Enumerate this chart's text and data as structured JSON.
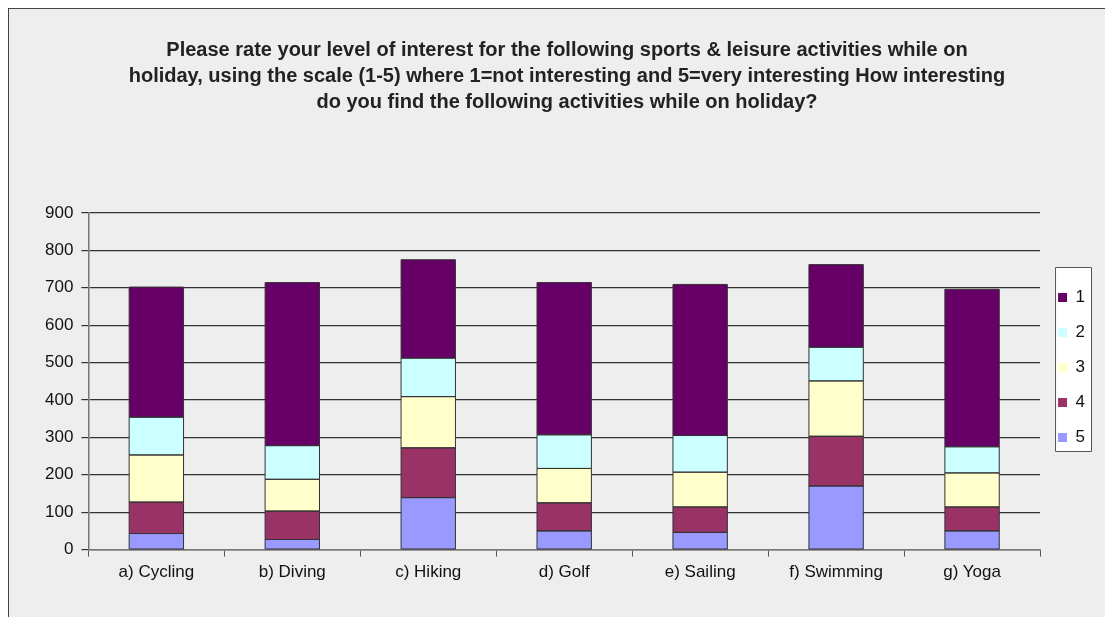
{
  "chart_data": {
    "type": "bar",
    "title": "Please rate your level of interest for the following sports & leisure activities while on holiday, using the scale (1-5) where 1=not interesting and 5=very interesting How interesting do you find the following activities while on holiday?",
    "categories": [
      "a) Cycling",
      "b) Diving",
      "c) Hiking",
      "d) Golf",
      "e) Sailing",
      "f) Swimming",
      "g) Yoga"
    ],
    "series": [
      {
        "name": "5",
        "color": "#9999ff",
        "values": [
          43,
          27,
          139,
          50,
          46,
          170,
          50
        ]
      },
      {
        "name": "4",
        "color": "#993366",
        "values": [
          84,
          76,
          133,
          75,
          68,
          133,
          64
        ]
      },
      {
        "name": "3",
        "color": "#ffffcc",
        "values": [
          126,
          85,
          137,
          92,
          93,
          148,
          91
        ]
      },
      {
        "name": "2",
        "color": "#ccffff",
        "values": [
          101,
          90,
          103,
          90,
          98,
          90,
          70
        ]
      },
      {
        "name": "1",
        "color": "#660066",
        "values": [
          348,
          436,
          263,
          407,
          404,
          221,
          421
        ]
      }
    ],
    "stacked": true,
    "ylim": [
      0,
      900
    ],
    "yticks": [
      0,
      100,
      200,
      300,
      400,
      500,
      600,
      700,
      800,
      900
    ],
    "grid": "y",
    "legend": "right"
  }
}
